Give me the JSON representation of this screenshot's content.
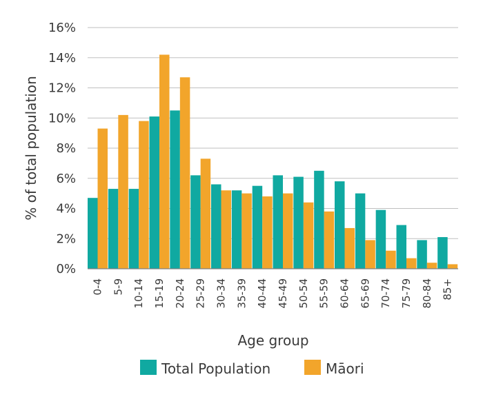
{
  "chart_data": {
    "type": "bar",
    "ylabel": "% of total population",
    "xlabel": "Age group",
    "ylim": [
      0,
      16
    ],
    "yticks": [
      0,
      2,
      4,
      6,
      8,
      10,
      12,
      14,
      16
    ],
    "ytick_labels": [
      "0%",
      "2%",
      "4%",
      "6%",
      "8%",
      "10%",
      "12%",
      "14%",
      "16%"
    ],
    "grid": true,
    "legend_position": "bottom",
    "categories": [
      "0-4",
      "5-9",
      "10-14",
      "15-19",
      "20-24",
      "25-29",
      "30-34",
      "35-39",
      "40-44",
      "45-49",
      "50-54",
      "55-59",
      "60-64",
      "65-69",
      "70-74",
      "75-79",
      "80-84",
      "85+"
    ],
    "series": [
      {
        "name": "Total Population",
        "color": "#10a9a1",
        "values": [
          4.7,
          5.3,
          5.3,
          10.1,
          10.5,
          6.2,
          5.6,
          5.2,
          5.5,
          6.2,
          6.1,
          6.5,
          5.8,
          5.0,
          3.9,
          2.9,
          1.9,
          2.1
        ]
      },
      {
        "name": "Māori",
        "color": "#f2a52b",
        "values": [
          9.3,
          10.2,
          9.8,
          14.2,
          12.7,
          7.3,
          5.2,
          5.0,
          4.8,
          5.0,
          4.4,
          3.8,
          2.7,
          1.9,
          1.2,
          0.7,
          0.4,
          0.3
        ]
      }
    ]
  }
}
